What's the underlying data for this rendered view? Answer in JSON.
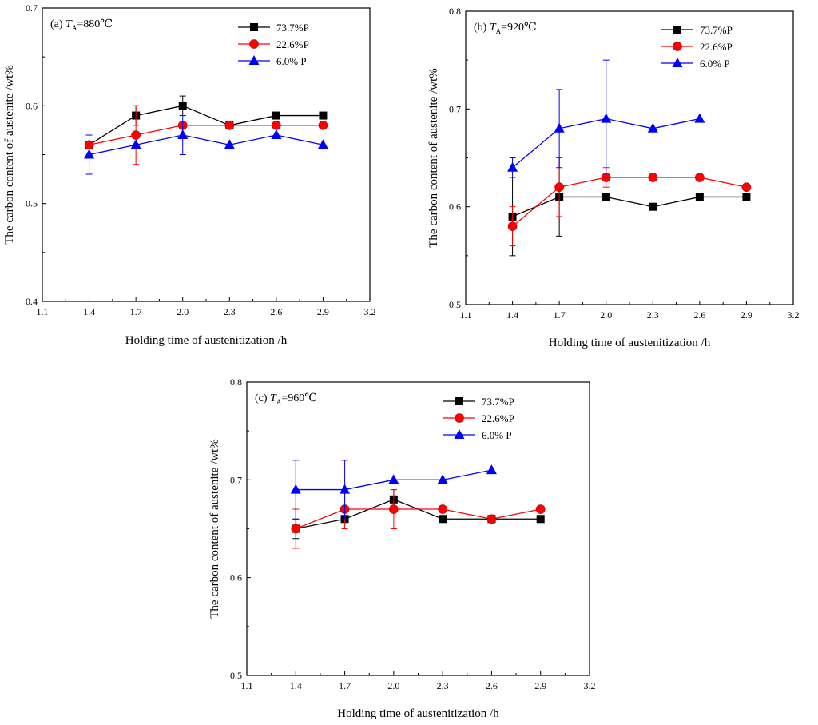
{
  "series_styles": [
    {
      "name": "73.7%P",
      "color": "#000000",
      "marker": "square"
    },
    {
      "name": "22.6%P",
      "color": "#ff0000",
      "marker": "circle"
    },
    {
      "name": "6.0% P",
      "color": "#0000ff",
      "marker": "triangle"
    }
  ],
  "chart_data": [
    {
      "type": "line",
      "panel_label": "(a)",
      "condition_symbol": "T",
      "condition_subscript": "A",
      "condition_value": "=880℃",
      "xlabel": "Holding time of austenitization /h",
      "ylabel": "The carbon content of austenite /wt%",
      "xlim": [
        1.1,
        3.2
      ],
      "ylim": [
        0.4,
        0.7
      ],
      "xticks": [
        "1.1",
        "1.4",
        "1.7",
        "2.0",
        "2.3",
        "2.6",
        "2.9",
        "3.2"
      ],
      "yticks": [
        "0.4",
        "0.5",
        "0.6",
        "0.7"
      ],
      "legend_position": "top-right",
      "series": [
        {
          "name": "73.7%P",
          "x": [
            1.4,
            1.7,
            2.0,
            2.3,
            2.6,
            2.9
          ],
          "y": [
            0.56,
            0.59,
            0.6,
            0.58,
            0.59,
            0.59
          ],
          "err": [
            [
              1.7,
              0.58,
              0.6
            ],
            [
              2.0,
              0.59,
              0.61
            ]
          ]
        },
        {
          "name": "22.6%P",
          "x": [
            1.4,
            1.7,
            2.0,
            2.3,
            2.6,
            2.9
          ],
          "y": [
            0.56,
            0.57,
            0.58,
            0.58,
            0.58,
            0.58
          ],
          "err": [
            [
              1.7,
              0.54,
              0.6
            ]
          ]
        },
        {
          "name": "6.0% P",
          "x": [
            1.4,
            1.7,
            2.0,
            2.3,
            2.6,
            2.9
          ],
          "y": [
            0.55,
            0.56,
            0.57,
            0.56,
            0.57,
            0.56
          ],
          "err": [
            [
              1.4,
              0.53,
              0.57
            ],
            [
              2.0,
              0.55,
              0.59
            ]
          ]
        }
      ]
    },
    {
      "type": "line",
      "panel_label": "(b)",
      "condition_symbol": "T",
      "condition_subscript": "A",
      "condition_value": "=920℃",
      "xlabel": "Holding time of austenitization /h",
      "ylabel": "The carbon content of austenite /wt%",
      "xlim": [
        1.1,
        3.2
      ],
      "ylim": [
        0.5,
        0.8
      ],
      "xticks": [
        "1.1",
        "1.4",
        "1.7",
        "2.0",
        "2.3",
        "2.6",
        "2.9",
        "3.2"
      ],
      "yticks": [
        "0.5",
        "0.6",
        "0.7",
        "0.8"
      ],
      "legend_position": "top-right",
      "series": [
        {
          "name": "73.7%P",
          "x": [
            1.4,
            1.7,
            2.0,
            2.3,
            2.6,
            2.9
          ],
          "y": [
            0.59,
            0.61,
            0.61,
            0.6,
            0.61,
            0.61
          ],
          "err": [
            [
              1.4,
              0.55,
              0.63
            ],
            [
              1.7,
              0.57,
              0.65
            ]
          ]
        },
        {
          "name": "22.6%P",
          "x": [
            1.4,
            1.7,
            2.0,
            2.3,
            2.6,
            2.9
          ],
          "y": [
            0.58,
            0.62,
            0.63,
            0.63,
            0.63,
            0.62
          ],
          "err": [
            [
              1.4,
              0.56,
              0.6
            ],
            [
              1.7,
              0.59,
              0.65
            ],
            [
              2.0,
              0.62,
              0.64
            ]
          ]
        },
        {
          "name": "6.0% P",
          "x": [
            1.4,
            1.7,
            2.0,
            2.3,
            2.6
          ],
          "y": [
            0.64,
            0.68,
            0.69,
            0.68,
            0.69
          ],
          "err": [
            [
              1.4,
              0.63,
              0.65
            ],
            [
              1.7,
              0.64,
              0.72
            ],
            [
              2.0,
              0.63,
              0.75
            ]
          ]
        }
      ]
    },
    {
      "type": "line",
      "panel_label": "(c)",
      "condition_symbol": "T",
      "condition_subscript": "A",
      "condition_value": "=960℃",
      "xlabel": "Holding time of austenitization /h",
      "ylabel": "The carbon content of austenite /wt%",
      "xlim": [
        1.1,
        3.2
      ],
      "ylim": [
        0.5,
        0.8
      ],
      "xticks": [
        "1.1",
        "1.4",
        "1.7",
        "2.0",
        "2.3",
        "2.6",
        "2.9",
        "3.2"
      ],
      "yticks": [
        "0.5",
        "0.6",
        "0.7",
        "0.8"
      ],
      "legend_position": "top-right",
      "series": [
        {
          "name": "73.7%P",
          "x": [
            1.4,
            1.7,
            2.0,
            2.3,
            2.6,
            2.9
          ],
          "y": [
            0.65,
            0.66,
            0.68,
            0.66,
            0.66,
            0.66
          ],
          "err": [
            [
              1.4,
              0.64,
              0.66
            ],
            [
              2.0,
              0.67,
              0.69
            ]
          ]
        },
        {
          "name": "22.6%P",
          "x": [
            1.4,
            1.7,
            2.0,
            2.3,
            2.6,
            2.9
          ],
          "y": [
            0.65,
            0.67,
            0.67,
            0.67,
            0.66,
            0.67
          ],
          "err": [
            [
              1.4,
              0.63,
              0.67
            ],
            [
              1.7,
              0.65,
              0.69
            ],
            [
              2.0,
              0.65,
              0.69
            ]
          ]
        },
        {
          "name": "6.0% P",
          "x": [
            1.4,
            1.7,
            2.0,
            2.3,
            2.6
          ],
          "y": [
            0.69,
            0.69,
            0.7,
            0.7,
            0.71
          ],
          "err": [
            [
              1.4,
              0.66,
              0.72
            ],
            [
              1.7,
              0.66,
              0.72
            ]
          ]
        }
      ]
    }
  ]
}
